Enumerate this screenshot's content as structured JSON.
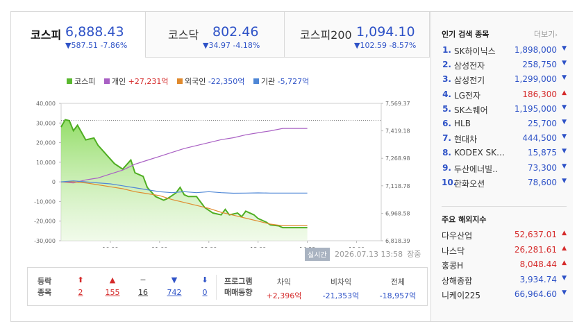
{
  "tabs": [
    {
      "name": "코스피",
      "value": "6,888.43",
      "change": "▼587.51 -7.86%",
      "active": true
    },
    {
      "name": "코스닥",
      "value": "802.46",
      "change": "▼34.97 -4.18%",
      "active": false
    },
    {
      "name": "코스피200",
      "value": "1,094.10",
      "change": "▼102.59 -8.57%",
      "active": false
    }
  ],
  "legend": [
    {
      "label": "코스피",
      "color": "#5ab82f"
    },
    {
      "label": "개인",
      "value": "+27,231억",
      "color": "#a960c4",
      "dir": "up"
    },
    {
      "label": "외국인",
      "value": "-22,350억",
      "color": "#e08a2e",
      "dir": "dn"
    },
    {
      "label": "기관",
      "value": "-5,727억",
      "color": "#4f87d6",
      "dir": "dn"
    }
  ],
  "chart_data": {
    "type": "line",
    "left_axis": {
      "ticks": [
        "40,000",
        "30,000",
        "20,000",
        "10,000",
        "0",
        "-10,000",
        "-20,000",
        "-30,000"
      ],
      "range": [
        -30000,
        40000
      ]
    },
    "right_axis": {
      "ticks": [
        "7,569.37",
        "7,419.18",
        "7,268.98",
        "7,118.78",
        "6,968.58",
        "6,818.39"
      ],
      "range": [
        6818.39,
        7569.37
      ]
    },
    "x_ticks": [
      "10:00",
      "11:00",
      "12:00",
      "13:00",
      "14:00",
      "15:00"
    ],
    "x_range": [
      "09:00",
      "15:30"
    ],
    "prev_close": 7475.94,
    "kospi": {
      "x": [
        "09:00",
        "09:05",
        "09:10",
        "09:15",
        "09:20",
        "09:25",
        "09:30",
        "09:40",
        "09:45",
        "09:55",
        "10:05",
        "10:15",
        "10:25",
        "10:30",
        "10:40",
        "10:45",
        "10:55",
        "11:05",
        "11:10",
        "11:20",
        "11:25",
        "11:30",
        "11:35",
        "11:45",
        "11:55",
        "12:05",
        "12:15",
        "12:20",
        "12:25",
        "12:35",
        "12:40",
        "12:45",
        "12:50",
        "12:55",
        "13:00",
        "13:10",
        "13:15",
        "13:25",
        "13:30",
        "14:00"
      ],
      "y": [
        7440,
        7480,
        7475,
        7420,
        7450,
        7410,
        7370,
        7380,
        7340,
        7290,
        7240,
        7210,
        7260,
        7190,
        7170,
        7110,
        7060,
        7040,
        7050,
        7080,
        7110,
        7070,
        7060,
        7060,
        7000,
        6970,
        6960,
        6990,
        6960,
        6970,
        6950,
        6980,
        6970,
        6960,
        6940,
        6920,
        6905,
        6900,
        6890,
        6890
      ]
    },
    "series": [
      {
        "name": "개인",
        "x": [
          "09:00",
          "09:15",
          "09:30",
          "09:45",
          "10:00",
          "10:15",
          "10:30",
          "10:45",
          "11:00",
          "11:15",
          "11:30",
          "11:45",
          "12:00",
          "12:15",
          "12:30",
          "12:45",
          "13:00",
          "13:15",
          "13:30",
          "13:45",
          "14:00"
        ],
        "y": [
          0,
          -500,
          1000,
          2000,
          4000,
          6000,
          9000,
          11000,
          13000,
          15000,
          17000,
          18500,
          20000,
          21500,
          22500,
          24000,
          25000,
          26000,
          27231,
          27231,
          27231
        ]
      },
      {
        "name": "외국인",
        "x": [
          "09:00",
          "09:15",
          "09:30",
          "09:45",
          "10:00",
          "10:15",
          "10:30",
          "10:45",
          "11:00",
          "11:15",
          "11:30",
          "11:45",
          "12:00",
          "12:15",
          "12:30",
          "12:45",
          "13:00",
          "13:15",
          "13:30",
          "13:45",
          "14:00"
        ],
        "y": [
          0,
          0,
          -500,
          -1500,
          -2500,
          -3500,
          -5000,
          -6000,
          -7000,
          -9000,
          -10500,
          -12000,
          -13500,
          -15500,
          -17000,
          -18500,
          -20000,
          -21500,
          -22350,
          -22350,
          -22350
        ]
      },
      {
        "name": "기관",
        "x": [
          "09:00",
          "09:15",
          "09:30",
          "09:45",
          "10:00",
          "10:15",
          "10:30",
          "10:45",
          "11:00",
          "11:15",
          "11:30",
          "11:45",
          "12:00",
          "12:15",
          "12:30",
          "12:45",
          "13:00",
          "13:15",
          "13:30",
          "13:45",
          "14:00"
        ],
        "y": [
          0,
          500,
          0,
          -500,
          -1000,
          -2000,
          -3000,
          -4000,
          -5000,
          -5500,
          -5000,
          -5500,
          -5000,
          -5500,
          -5800,
          -5700,
          -5600,
          -5700,
          -5727,
          -5727,
          -5727
        ]
      }
    ]
  },
  "realtime": {
    "button": "실시간",
    "timestamp": "2026.07.13 13:58",
    "session": "장중"
  },
  "stats": {
    "label1": "등락",
    "label2": "종목",
    "items": [
      {
        "symbol": "⬆",
        "count": "2",
        "dir": "up"
      },
      {
        "symbol": "▲",
        "count": "155",
        "dir": "up"
      },
      {
        "symbol": "−",
        "count": "16",
        "dir": "flat"
      },
      {
        "symbol": "▼",
        "count": "742",
        "dir": "dn"
      },
      {
        "symbol": "⬇",
        "count": "0",
        "dir": "dn"
      }
    ],
    "program_label1": "프로그램",
    "program_label2": "매매동향",
    "program": [
      {
        "label": "차익",
        "value": "+2,396억",
        "dir": "up"
      },
      {
        "label": "비차익",
        "value": "-21,353억",
        "dir": "dn"
      },
      {
        "label": "전체",
        "value": "-18,957억",
        "dir": "dn"
      }
    ]
  },
  "popular": {
    "title": "인기 검색 종목",
    "more": "더보기",
    "items": [
      {
        "rank": "1.",
        "name": "SK하이닉스",
        "price": "1,898,000",
        "dir": "dn"
      },
      {
        "rank": "2.",
        "name": "삼성전자",
        "price": "258,750",
        "dir": "dn"
      },
      {
        "rank": "3.",
        "name": "삼성전기",
        "price": "1,299,000",
        "dir": "dn"
      },
      {
        "rank": "4.",
        "name": "LG전자",
        "price": "186,300",
        "dir": "up"
      },
      {
        "rank": "5.",
        "name": "SK스퀘어",
        "price": "1,195,000",
        "dir": "dn"
      },
      {
        "rank": "6.",
        "name": "HLB",
        "price": "25,700",
        "dir": "dn"
      },
      {
        "rank": "7.",
        "name": "현대차",
        "price": "444,500",
        "dir": "dn"
      },
      {
        "rank": "8.",
        "name": "KODEX SK…",
        "price": "15,875",
        "dir": "dn"
      },
      {
        "rank": "9.",
        "name": "두산에너빌..",
        "price": "73,300",
        "dir": "dn"
      },
      {
        "rank": "10.",
        "name": "한화오션",
        "price": "78,600",
        "dir": "dn"
      }
    ]
  },
  "overseas": {
    "title": "주요 해외지수",
    "items": [
      {
        "name": "다우산업",
        "value": "52,637.01",
        "dir": "up"
      },
      {
        "name": "나스닥",
        "value": "26,281.61",
        "dir": "up"
      },
      {
        "name": "홍콩H",
        "value": "8,048.44",
        "dir": "up"
      },
      {
        "name": "상해종합",
        "value": "3,934.74",
        "dir": "dn"
      },
      {
        "name": "니케이225",
        "value": "66,964.60",
        "dir": "dn"
      }
    ]
  },
  "arrows": {
    "up": "▲",
    "dn": "▼"
  }
}
